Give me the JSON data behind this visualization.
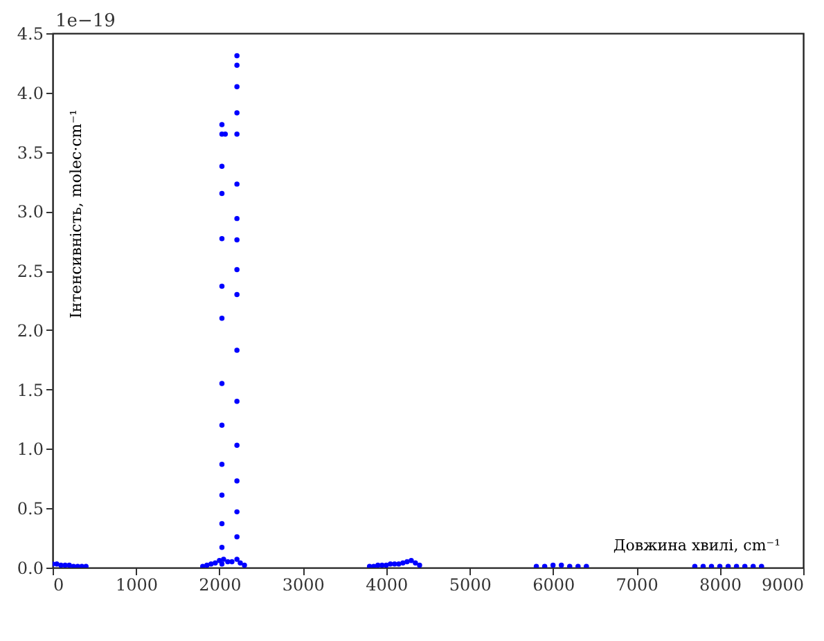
{
  "chart_data": {
    "type": "scatter",
    "xlabel": "Довжина хвилі, cm⁻¹",
    "ylabel": "Інтенсивність, molec·cm⁻¹",
    "annotations": [
      "1e−19"
    ],
    "xlim": [
      0,
      9000
    ],
    "xticks": [
      0,
      1000,
      2000,
      3000,
      4000,
      5000,
      6000,
      7000,
      8000,
      9000
    ],
    "ylim": [
      0,
      4.5
    ],
    "yticks": [
      {
        "value": 0,
        "label": "0.0"
      },
      0.5,
      {
        "value": 1,
        "label": "1.0"
      },
      1.5,
      {
        "value": 2,
        "label": "2.0"
      },
      2.5,
      {
        "value": 3,
        "label": "3.0"
      },
      3.5,
      {
        "value": 4,
        "label": "4.0"
      },
      4.5
    ],
    "grid": false,
    "legend": false,
    "marker": "circle",
    "series": [
      {
        "color": "#0000ff",
        "x": [
          0,
          50,
          100,
          150,
          200,
          250,
          300,
          350,
          400,
          1800,
          1850,
          1900,
          1950,
          2000,
          2050,
          2100,
          2150,
          2210,
          2250,
          2300,
          3800,
          3850,
          3900,
          3950,
          4000,
          4050,
          4100,
          4150,
          4200,
          4250,
          4300,
          4350,
          4400,
          5800,
          5900,
          6000,
          6100,
          6200,
          6300,
          6400,
          7700,
          7800,
          7900,
          8000,
          8100,
          8200,
          8300,
          8400,
          8500
        ],
        "values": [
          0.03,
          0.03,
          0.02,
          0.02,
          0.02,
          0.01,
          0.01,
          0.01,
          0.01,
          0.01,
          0.02,
          0.03,
          0.04,
          0.06,
          0.07,
          0.05,
          0.05,
          0.07,
          0.04,
          0.02,
          0.01,
          0.01,
          0.02,
          0.02,
          0.02,
          0.03,
          0.03,
          0.03,
          0.04,
          0.05,
          0.06,
          0.04,
          0.02,
          0.01,
          0.01,
          0.02,
          0.02,
          0.01,
          0.01,
          0.01,
          0.01,
          0.01,
          0.01,
          0.01,
          0.01,
          0.01,
          0.01,
          0.01,
          0.01
        ]
      },
      {
        "color": "#0000ff",
        "x": [
          2210,
          2210,
          2210,
          2210,
          2210,
          2210,
          2210,
          2210,
          2210,
          2210,
          2210,
          2210,
          2210,
          2210,
          2210,
          2210,
          2030,
          2030,
          2070,
          2030,
          2030,
          2030,
          2030,
          2030,
          2030,
          2030,
          2030,
          2030,
          2030,
          2030,
          2030
        ],
        "values": [
          4.31,
          4.23,
          4.05,
          3.83,
          3.65,
          3.23,
          2.94,
          2.76,
          2.51,
          2.3,
          1.83,
          1.4,
          1.03,
          0.73,
          0.47,
          0.26,
          3.73,
          3.65,
          3.65,
          3.38,
          3.15,
          2.77,
          2.37,
          2.1,
          1.55,
          1.2,
          0.87,
          0.61,
          0.37,
          0.17,
          0.03
        ]
      }
    ]
  }
}
